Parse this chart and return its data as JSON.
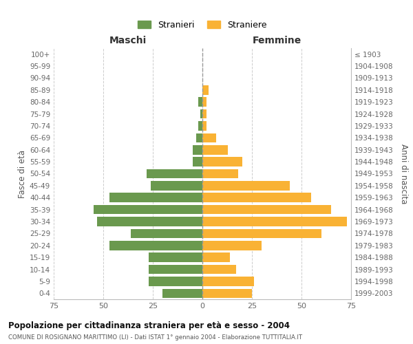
{
  "age_groups": [
    "0-4",
    "5-9",
    "10-14",
    "15-19",
    "20-24",
    "25-29",
    "30-34",
    "35-39",
    "40-44",
    "45-49",
    "50-54",
    "55-59",
    "60-64",
    "65-69",
    "70-74",
    "75-79",
    "80-84",
    "85-89",
    "90-94",
    "95-99",
    "100+"
  ],
  "birth_years": [
    "1999-2003",
    "1994-1998",
    "1989-1993",
    "1984-1988",
    "1979-1983",
    "1974-1978",
    "1969-1973",
    "1964-1968",
    "1959-1963",
    "1954-1958",
    "1949-1953",
    "1944-1948",
    "1939-1943",
    "1934-1938",
    "1929-1933",
    "1924-1928",
    "1919-1923",
    "1914-1918",
    "1909-1913",
    "1904-1908",
    "≤ 1903"
  ],
  "males": [
    20,
    27,
    27,
    27,
    47,
    36,
    53,
    55,
    47,
    26,
    28,
    5,
    5,
    3,
    2,
    1,
    2,
    0,
    0,
    0,
    0
  ],
  "females": [
    25,
    26,
    17,
    14,
    30,
    60,
    73,
    65,
    55,
    44,
    18,
    20,
    13,
    7,
    2,
    2,
    2,
    3,
    0,
    0,
    0
  ],
  "male_color": "#6a994e",
  "female_color": "#f9b234",
  "title_main": "Popolazione per cittadinanza straniera per età e sesso - 2004",
  "title_sub": "COMUNE DI ROSIGNANO MARITTIMO (LI) - Dati ISTAT 1° gennaio 2004 - Elaborazione TUTTITALIA.IT",
  "xlabel_left": "Maschi",
  "xlabel_right": "Femmine",
  "ylabel_left": "Fasce di età",
  "ylabel_right": "Anni di nascita",
  "legend_male": "Stranieri",
  "legend_female": "Straniere",
  "xlim": 75,
  "background_color": "#ffffff",
  "grid_color": "#cccccc"
}
